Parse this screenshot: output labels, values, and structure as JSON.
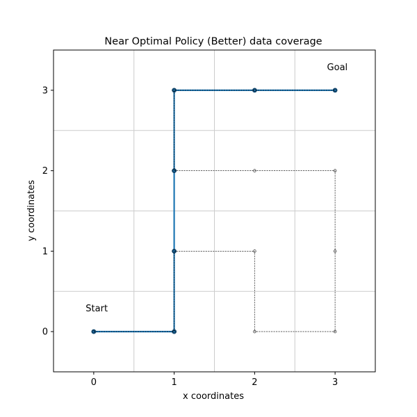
{
  "chart_data": {
    "type": "line",
    "title": "Near Optimal Policy (Better) data coverage",
    "xlabel": "x coordinates",
    "ylabel": "y coordinates",
    "xlim": [
      -0.5,
      3.5
    ],
    "ylim": [
      -0.5,
      3.5
    ],
    "xticks": [
      0,
      1,
      2,
      3
    ],
    "yticks": [
      0,
      1,
      2,
      3
    ],
    "xtick_labels": [
      "0",
      "1",
      "2",
      "3"
    ],
    "ytick_labels": [
      "0",
      "1",
      "2",
      "3"
    ],
    "grid": {
      "x": [
        0.5,
        1.5,
        2.5
      ],
      "y": [
        0.5,
        1.5,
        2.5
      ]
    },
    "series": [
      {
        "style": "dashed-black-thin",
        "color": "#000000",
        "points": [
          [
            0,
            0
          ],
          [
            1,
            0
          ],
          [
            1,
            1
          ],
          [
            2,
            1
          ],
          [
            2,
            0
          ],
          [
            3,
            0
          ],
          [
            3,
            1
          ],
          [
            3,
            2
          ],
          [
            2,
            2
          ],
          [
            1,
            2
          ],
          [
            1,
            3
          ],
          [
            2,
            3
          ],
          [
            3,
            3
          ]
        ]
      },
      {
        "style": "solid-blue-thick",
        "color": "#1f77b4",
        "points": [
          [
            0,
            0
          ],
          [
            1,
            0
          ],
          [
            1,
            1
          ],
          [
            1,
            2
          ],
          [
            1,
            3
          ],
          [
            2,
            3
          ],
          [
            3,
            3
          ]
        ]
      }
    ],
    "annotations": [
      {
        "text": "Start",
        "x": -0.1,
        "y": 0.25
      },
      {
        "text": "Goal",
        "x": 2.9,
        "y": 3.25
      }
    ]
  }
}
